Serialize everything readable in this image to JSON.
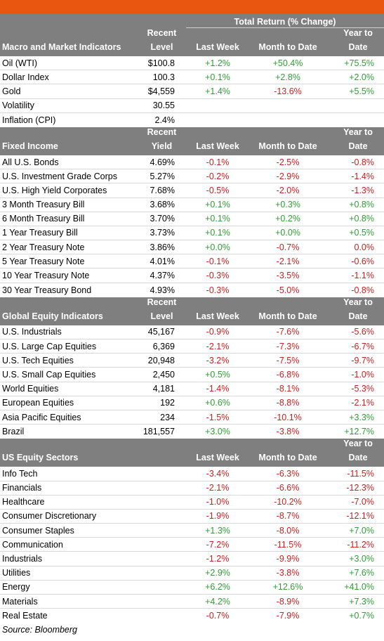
{
  "header": {
    "total_return_label": "Total Return (% Change)"
  },
  "columns": {
    "last_week": "Last Week",
    "month_to_date": "Month to Date",
    "ytd_top": "Year to",
    "ytd_bottom": "Date",
    "level_top": "Recent",
    "level_bottom": "Level",
    "yield_top": "Recent",
    "yield_bottom": "Yield"
  },
  "sections": [
    {
      "title": "Macro and Market Indicators",
      "value_col_top": "Recent",
      "value_col_bottom": "Level",
      "rows": [
        {
          "name": "Oil (WTI)",
          "level": "$100.8",
          "week": "+1.2%",
          "mtd": "+50.4%",
          "ytd": "+75.5%"
        },
        {
          "name": "Dollar Index",
          "level": "100.3",
          "week": "+0.1%",
          "mtd": "+2.8%",
          "ytd": "+2.0%"
        },
        {
          "name": "Gold",
          "level": "$4,559",
          "week": "+1.4%",
          "mtd": "-13.6%",
          "ytd": "+5.5%"
        },
        {
          "name": "Volatility",
          "level": "30.55",
          "week": "",
          "mtd": "",
          "ytd": ""
        },
        {
          "name": "Inflation (CPI)",
          "level": "2.4%",
          "week": "",
          "mtd": "",
          "ytd": ""
        }
      ]
    },
    {
      "title": "Fixed Income",
      "value_col_top": "Recent",
      "value_col_bottom": "Yield",
      "rows": [
        {
          "name": "All U.S. Bonds",
          "level": "4.69%",
          "week": "-0.1%",
          "mtd": "-2.5%",
          "ytd": "-0.8%"
        },
        {
          "name": "U.S. Investment Grade Corps",
          "level": "5.27%",
          "week": "-0.2%",
          "mtd": "-2.9%",
          "ytd": "-1.4%"
        },
        {
          "name": "U.S. High Yield Corporates",
          "level": "7.68%",
          "week": "-0.5%",
          "mtd": "-2.0%",
          "ytd": "-1.3%"
        },
        {
          "name": "3 Month Treasury Bill",
          "level": "3.68%",
          "week": "+0.1%",
          "mtd": "+0.3%",
          "ytd": "+0.8%"
        },
        {
          "name": "6 Month Treasury Bill",
          "level": "3.70%",
          "week": "+0.1%",
          "mtd": "+0.2%",
          "ytd": "+0.8%"
        },
        {
          "name": "1 Year Treasury Bill",
          "level": "3.73%",
          "week": "+0.1%",
          "mtd": "+0.0%",
          "ytd": "+0.5%"
        },
        {
          "name": "2 Year Treasury Note",
          "level": "3.86%",
          "week": "+0.0%",
          "mtd": "-0.7%",
          "ytd": "0.0%"
        },
        {
          "name": "5 Year Treasury Note",
          "level": "4.01%",
          "week": "-0.1%",
          "mtd": "-2.1%",
          "ytd": "-0.6%"
        },
        {
          "name": "10 Year Treasury Note",
          "level": "4.37%",
          "week": "-0.3%",
          "mtd": "-3.5%",
          "ytd": "-1.1%"
        },
        {
          "name": "30 Year Treasury Bond",
          "level": "4.93%",
          "week": "-0.3%",
          "mtd": "-5.0%",
          "ytd": "-0.8%"
        }
      ]
    },
    {
      "title": "Global Equity Indicators",
      "value_col_top": "Recent",
      "value_col_bottom": "Level",
      "rows": [
        {
          "name": "U.S. Industrials",
          "level": "45,167",
          "week": "-0.9%",
          "mtd": "-7.6%",
          "ytd": "-5.6%"
        },
        {
          "name": "U.S. Large Cap Equities",
          "level": "6,369",
          "week": "-2.1%",
          "mtd": "-7.3%",
          "ytd": "-6.7%"
        },
        {
          "name": "U.S. Tech Equities",
          "level": "20,948",
          "week": "-3.2%",
          "mtd": "-7.5%",
          "ytd": "-9.7%"
        },
        {
          "name": "U.S. Small Cap Equities",
          "level": "2,450",
          "week": "+0.5%",
          "mtd": "-6.8%",
          "ytd": "-1.0%"
        },
        {
          "name": "World Equities",
          "level": "4,181",
          "week": "-1.4%",
          "mtd": "-8.1%",
          "ytd": "-5.3%"
        },
        {
          "name": "European Equities",
          "level": "192",
          "week": "+0.6%",
          "mtd": "-8.8%",
          "ytd": "-2.1%"
        },
        {
          "name": "Asia Pacific Equities",
          "level": "234",
          "week": "-1.5%",
          "mtd": "-10.1%",
          "ytd": "+3.3%"
        },
        {
          "name": "Brazil",
          "level": "181,557",
          "week": "+3.0%",
          "mtd": "-3.8%",
          "ytd": "+12.7%"
        }
      ]
    },
    {
      "title": "US Equity Sectors",
      "value_col_top": "",
      "value_col_bottom": "",
      "rows": [
        {
          "name": "Info Tech",
          "level": "",
          "week": "-3.4%",
          "mtd": "-6.3%",
          "ytd": "-11.5%"
        },
        {
          "name": "Financials",
          "level": "",
          "week": "-2.1%",
          "mtd": "-6.6%",
          "ytd": "-12.3%"
        },
        {
          "name": "Healthcare",
          "level": "",
          "week": "-1.0%",
          "mtd": "-10.2%",
          "ytd": "-7.0%"
        },
        {
          "name": "Consumer Discretionary",
          "level": "",
          "week": "-1.9%",
          "mtd": "-8.7%",
          "ytd": "-12.1%"
        },
        {
          "name": "Consumer Staples",
          "level": "",
          "week": "+1.3%",
          "mtd": "-8.0%",
          "ytd": "+7.0%"
        },
        {
          "name": "Communication",
          "level": "",
          "week": "-7.2%",
          "mtd": "-11.5%",
          "ytd": "-11.2%"
        },
        {
          "name": "Industrials",
          "level": "",
          "week": "-1.2%",
          "mtd": "-9.9%",
          "ytd": "+3.0%"
        },
        {
          "name": "Utilities",
          "level": "",
          "week": "+2.9%",
          "mtd": "-3.8%",
          "ytd": "+7.6%"
        },
        {
          "name": "Energy",
          "level": "",
          "week": "+6.2%",
          "mtd": "+12.6%",
          "ytd": "+41.0%"
        },
        {
          "name": "Materials",
          "level": "",
          "week": "+4.2%",
          "mtd": "-8.9%",
          "ytd": "+7.3%"
        },
        {
          "name": "Real Estate",
          "level": "",
          "week": "-0.7%",
          "mtd": "-7.9%",
          "ytd": "+0.7%"
        }
      ]
    }
  ],
  "footer": {
    "source": "Source: Bloomberg"
  },
  "colors": {
    "accent": "#e8560f",
    "header_bg": "#7f7f7f",
    "positive": "#2e9e33",
    "negative": "#cc1f1f"
  }
}
